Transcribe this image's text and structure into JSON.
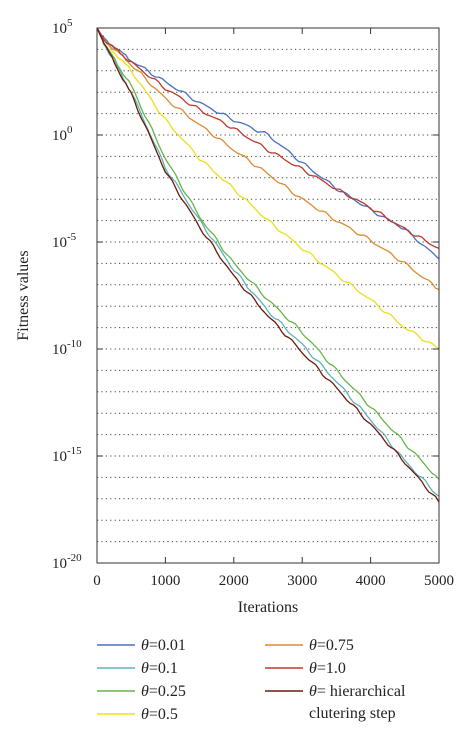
{
  "chart_data": {
    "type": "line",
    "xlabel": "Iterations",
    "ylabel": "Fitness values",
    "yscale": "log",
    "xlim": [
      0,
      5000
    ],
    "ylim": [
      1e-20,
      100000.0
    ],
    "x_ticks": [
      0,
      1000,
      2000,
      3000,
      4000,
      5000
    ],
    "y_major_ticks": [
      {
        "base": "10",
        "exp": "5",
        "value": 100000.0
      },
      {
        "base": "10",
        "exp": "0",
        "value": 1
      },
      {
        "base": "10",
        "exp": "-5",
        "value": 1e-05
      },
      {
        "base": "10",
        "exp": "-10",
        "value": 1e-10
      },
      {
        "base": "10",
        "exp": "-15",
        "value": 1e-15
      },
      {
        "base": "10",
        "exp": "-20",
        "value": 1e-20
      }
    ],
    "grid": "horizontal dotted",
    "legend_position": "bottom",
    "series": [
      {
        "name": "θ=0.01",
        "sym": "θ",
        "label": "=0.01",
        "color": "#4a6fc0",
        "x": [
          0,
          100,
          500,
          1000,
          1500,
          2000,
          2500,
          3000,
          3500,
          4000,
          4500,
          5000
        ],
        "y": [
          100000.0,
          32000.0,
          3000,
          300,
          32,
          5,
          1,
          0.05,
          0.0032,
          0.00032,
          4e-05,
          1.6e-06
        ]
      },
      {
        "name": "θ=0.1",
        "sym": "θ",
        "label": "=0.1",
        "color": "#5fb3b8",
        "x": [
          0,
          100,
          500,
          1000,
          1500,
          2000,
          2500,
          3000,
          3500,
          4000,
          4500,
          5000
        ],
        "y": [
          100000.0,
          20000.0,
          100,
          0.03,
          0.0001,
          5e-07,
          6e-09,
          1.6e-10,
          3e-12,
          5e-14,
          6e-16,
          1.3e-17
        ]
      },
      {
        "name": "θ=0.25",
        "sym": "θ",
        "label": "=0.25",
        "color": "#69b34c",
        "x": [
          0,
          100,
          500,
          1000,
          1500,
          2000,
          2500,
          3000,
          3500,
          4000,
          4500,
          5000
        ],
        "y": [
          100000.0,
          20000.0,
          200,
          0.08,
          0.00015,
          1e-06,
          2e-08,
          6e-10,
          1e-11,
          2e-13,
          4e-15,
          8e-17
        ]
      },
      {
        "name": "θ=0.5",
        "sym": "θ",
        "label": "=0.5",
        "color": "#e8e01a",
        "x": [
          0,
          100,
          500,
          1000,
          1500,
          2000,
          2500,
          3000,
          3500,
          4000,
          4500,
          5000
        ],
        "y": [
          100000.0,
          25000.0,
          1000,
          5,
          0.08,
          0.003,
          0.0001,
          5e-06,
          3e-07,
          2e-08,
          1e-09,
          1e-10
        ]
      },
      {
        "name": "θ=0.75",
        "sym": "θ",
        "label": "=0.75",
        "color": "#e08a2e",
        "x": [
          0,
          100,
          500,
          1000,
          1500,
          2000,
          2500,
          3000,
          3500,
          4000,
          4500,
          5000
        ],
        "y": [
          100000.0,
          28000.0,
          2000,
          50,
          3,
          0.2,
          0.015,
          0.001,
          0.0001,
          1.2e-05,
          1e-06,
          6e-08
        ]
      },
      {
        "name": "θ=1.0",
        "sym": "θ",
        "label": "=1.0",
        "color": "#c0392b",
        "x": [
          0,
          100,
          500,
          1000,
          1500,
          2000,
          2500,
          3000,
          3500,
          4000,
          4500,
          5000
        ],
        "y": [
          100000.0,
          30000.0,
          2500,
          150,
          15,
          2,
          0.2,
          0.025,
          0.003,
          0.0004,
          4e-05,
          5e-06
        ]
      },
      {
        "name": "θ= hierarchical clutering step",
        "sym": "θ",
        "label": "= hierarchical",
        "label2": "clutering step",
        "color": "#6b1a0e",
        "x": [
          0,
          100,
          500,
          1000,
          1500,
          2000,
          2500,
          3000,
          3500,
          4000,
          4500,
          5000
        ],
        "y": [
          100000.0,
          20000.0,
          80,
          0.02,
          5e-05,
          2.5e-07,
          3.5e-09,
          7e-11,
          1.5e-12,
          3e-14,
          5e-16,
          7e-18
        ]
      }
    ]
  }
}
